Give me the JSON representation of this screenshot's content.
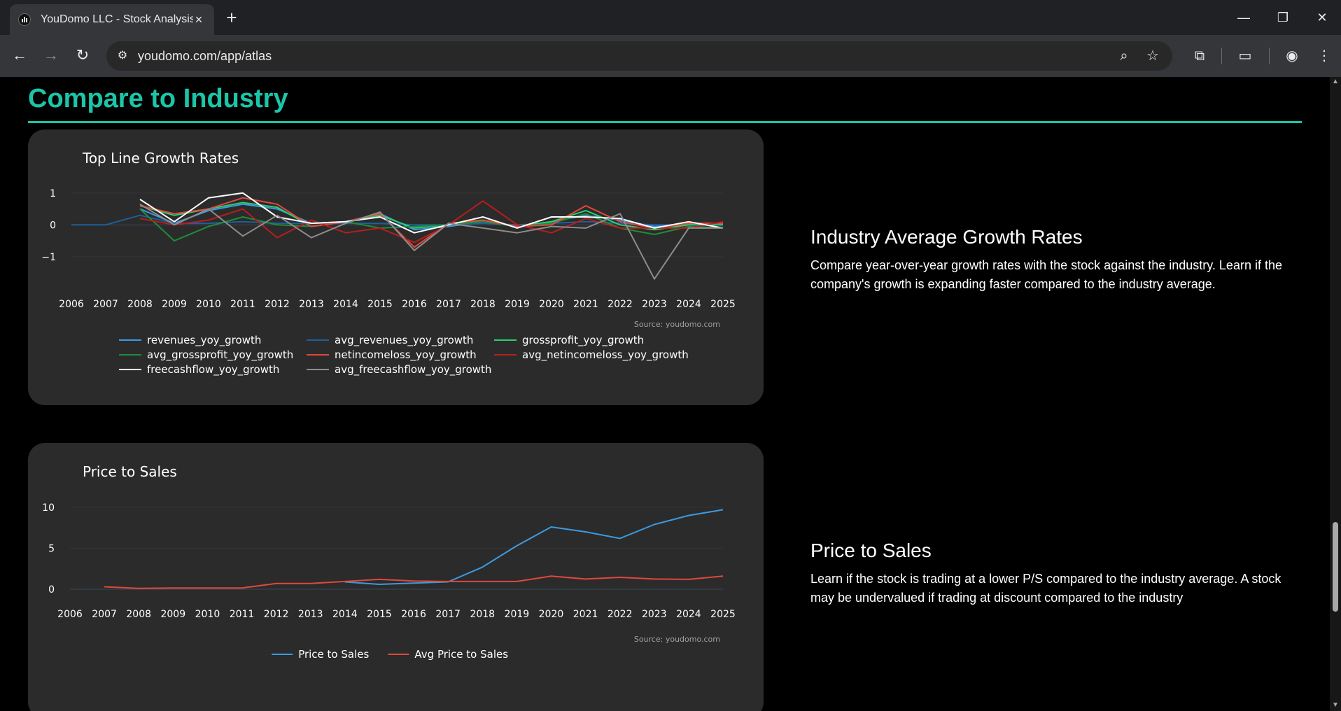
{
  "browser": {
    "tab_title": "YouDomo LLC - Stock Analysis T",
    "tab_close": "×",
    "new_tab": "+",
    "url": "youdomo.com/app/atlas",
    "window": {
      "minimize": "—",
      "restore": "❐",
      "close": "✕"
    }
  },
  "page": {
    "section_title": "Compare to Industry",
    "panels": [
      {
        "title": "Industry Average Growth Rates",
        "body": "Compare year-over-year growth rates with the stock against the industry. Learn if the company's growth is expanding faster compared to the industry average."
      },
      {
        "title": "Price to Sales",
        "body": "Learn if the stock is trading at a lower P/S compared to the industry average. A stock may be undervalued if trading at discount compared to the industry"
      }
    ]
  },
  "chart_data": [
    {
      "type": "line",
      "title": "Top Line Growth Rates",
      "source": "Source: youdomo.com",
      "x": [
        2006,
        2007,
        2008,
        2009,
        2010,
        2011,
        2012,
        2013,
        2014,
        2015,
        2016,
        2017,
        2018,
        2019,
        2020,
        2021,
        2022,
        2023,
        2024,
        2025
      ],
      "x_ticks": [
        "2006",
        "2007",
        "2008",
        "2009",
        "2010",
        "2011",
        "2012",
        "2013",
        "2014",
        "2015",
        "2016",
        "2017",
        "2018",
        "2019",
        "2020",
        "2021",
        "2022",
        "2023",
        "2024",
        "2025"
      ],
      "y_ticks": [
        "1",
        "0",
        "−1"
      ],
      "y_tick_values": [
        1,
        0,
        -1
      ],
      "ylim": [
        -1.75,
        1.15
      ],
      "xlim": [
        2006,
        2025
      ],
      "legend_placement": "bottom",
      "series": [
        {
          "name": "revenues_yoy_growth",
          "color": "#3b9ae1",
          "values": [
            null,
            null,
            0.5,
            0.05,
            0.45,
            0.65,
            0.5,
            0.05,
            0.1,
            0.35,
            -0.15,
            -0.05,
            0.1,
            -0.05,
            0.1,
            0.3,
            0.15,
            -0.05,
            0.05,
            0.05
          ]
        },
        {
          "name": "avg_revenues_yoy_growth",
          "color": "#1e5f99",
          "values": [
            0,
            0,
            0.3,
            0.05,
            0.05,
            0.1,
            0.05,
            0.05,
            0.05,
            0.05,
            0.0,
            0.0,
            0.05,
            0.0,
            0.05,
            0.1,
            0.05,
            0.0,
            0.0,
            0.0
          ]
        },
        {
          "name": "grossprofit_yoy_growth",
          "color": "#2ecc71",
          "values": [
            null,
            null,
            0.6,
            0.3,
            0.5,
            0.7,
            0.55,
            -0.05,
            0.1,
            0.3,
            -0.1,
            0.0,
            0.15,
            -0.05,
            0.1,
            0.45,
            0.0,
            -0.15,
            0.0,
            0.0
          ]
        },
        {
          "name": "avg_grossprofit_yoy_growth",
          "color": "#1e8c3a",
          "values": [
            null,
            null,
            0.5,
            -0.5,
            -0.05,
            0.25,
            0.0,
            -0.05,
            0.1,
            -0.1,
            -0.05,
            0.0,
            0.1,
            -0.05,
            0.05,
            0.35,
            -0.1,
            -0.3,
            -0.05,
            -0.1
          ]
        },
        {
          "name": "netincomeloss_yoy_growth",
          "color": "#e0483c",
          "values": [
            null,
            null,
            0.6,
            0.35,
            0.5,
            0.85,
            0.65,
            -0.05,
            0.1,
            0.35,
            -0.7,
            0.05,
            0.15,
            -0.05,
            0.0,
            0.6,
            0.1,
            -0.1,
            0.05,
            0.05
          ]
        },
        {
          "name": "avg_netincomeloss_yoy_growth",
          "color": "#b81d1d",
          "values": [
            null,
            null,
            0.2,
            0.0,
            0.15,
            0.5,
            -0.4,
            0.15,
            -0.25,
            -0.1,
            -0.55,
            0.0,
            0.75,
            0.0,
            -0.25,
            0.2,
            -0.1,
            -0.1,
            -0.1,
            0.1
          ]
        },
        {
          "name": "freecashflow_yoy_growth",
          "color": "#ffffff",
          "values": [
            null,
            null,
            0.8,
            0.1,
            0.85,
            1.0,
            0.25,
            0.05,
            0.1,
            0.25,
            -0.25,
            0.0,
            0.25,
            -0.1,
            0.25,
            0.25,
            0.2,
            -0.1,
            0.1,
            -0.1
          ]
        },
        {
          "name": "avg_freecashflow_yoy_growth",
          "color": "#8c8c8c",
          "values": [
            null,
            null,
            0.65,
            0.0,
            0.5,
            -0.35,
            0.3,
            -0.4,
            0.05,
            0.4,
            -0.8,
            0.05,
            -0.1,
            -0.25,
            -0.05,
            -0.1,
            0.35,
            -1.7,
            -0.1,
            -0.1
          ]
        }
      ]
    },
    {
      "type": "line",
      "title": "Price to Sales",
      "source": "Source: youdomo.com",
      "x": [
        2006,
        2007,
        2008,
        2009,
        2010,
        2011,
        2012,
        2013,
        2014,
        2015,
        2016,
        2017,
        2018,
        2019,
        2020,
        2021,
        2022,
        2023,
        2024,
        2025
      ],
      "x_ticks": [
        "2006",
        "2007",
        "2008",
        "2009",
        "2010",
        "2011",
        "2012",
        "2013",
        "2014",
        "2015",
        "2016",
        "2017",
        "2018",
        "2019",
        "2020",
        "2021",
        "2022",
        "2023",
        "2024",
        "2025"
      ],
      "y_ticks": [
        "10",
        "5",
        "0"
      ],
      "y_tick_values": [
        10,
        5,
        0
      ],
      "ylim": [
        0,
        10.5
      ],
      "xlim": [
        2006,
        2025
      ],
      "legend_placement": "bottom",
      "series": [
        {
          "name": "Price to Sales",
          "color": "#3b9ae1",
          "values": [
            null,
            null,
            null,
            null,
            null,
            null,
            null,
            null,
            0.9,
            0.6,
            0.75,
            0.9,
            2.7,
            5.3,
            7.6,
            7.0,
            6.2,
            7.9,
            9.0,
            9.7
          ]
        },
        {
          "name": "Avg Price to Sales",
          "color": "#e0483c",
          "values": [
            null,
            0.3,
            0.1,
            0.15,
            0.15,
            0.15,
            0.7,
            0.7,
            0.95,
            1.2,
            1.0,
            0.95,
            0.95,
            0.95,
            1.6,
            1.25,
            1.45,
            1.25,
            1.2,
            1.6
          ]
        }
      ]
    }
  ]
}
